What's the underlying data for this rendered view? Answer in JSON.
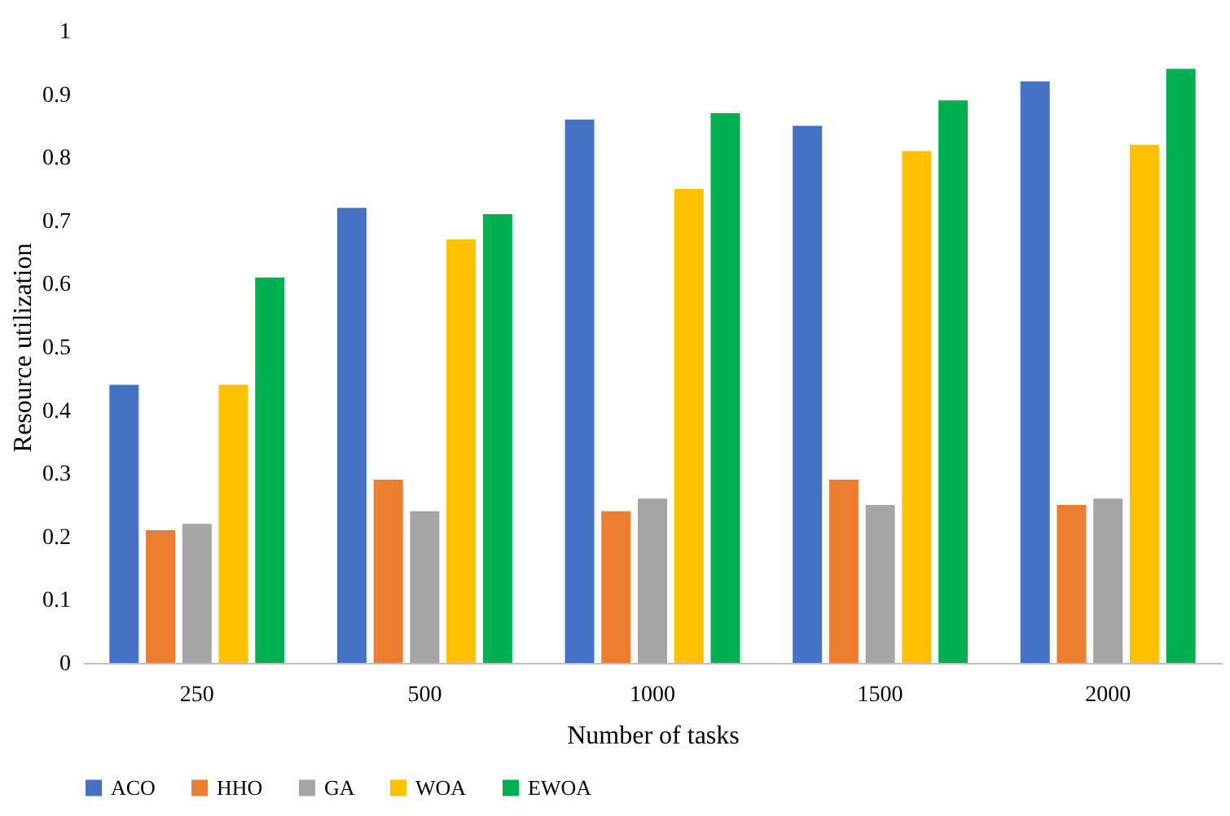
{
  "chart_data": {
    "type": "bar",
    "xlabel": "Number of tasks",
    "ylabel": "Resource utilization",
    "categories": [
      "250",
      "500",
      "1000",
      "1500",
      "2000"
    ],
    "series": [
      {
        "name": "ACO",
        "color": "#4472c4",
        "values": [
          0.44,
          0.72,
          0.86,
          0.85,
          0.92
        ]
      },
      {
        "name": "HHO",
        "color": "#ed7d31",
        "values": [
          0.21,
          0.29,
          0.24,
          0.29,
          0.25
        ]
      },
      {
        "name": "GA",
        "color": "#a5a5a5",
        "values": [
          0.22,
          0.24,
          0.26,
          0.25,
          0.26
        ]
      },
      {
        "name": "WOA",
        "color": "#ffc000",
        "values": [
          0.44,
          0.67,
          0.75,
          0.81,
          0.82
        ]
      },
      {
        "name": "EWOA",
        "color": "#00b050",
        "values": [
          0.61,
          0.71,
          0.87,
          0.89,
          0.94
        ]
      }
    ],
    "ylim": [
      0,
      1
    ],
    "yticks": [
      0,
      0.1,
      0.2,
      0.3,
      0.4,
      0.5,
      0.6,
      0.7,
      0.8,
      0.9,
      1
    ],
    "grid": false,
    "legend": "bottom"
  }
}
